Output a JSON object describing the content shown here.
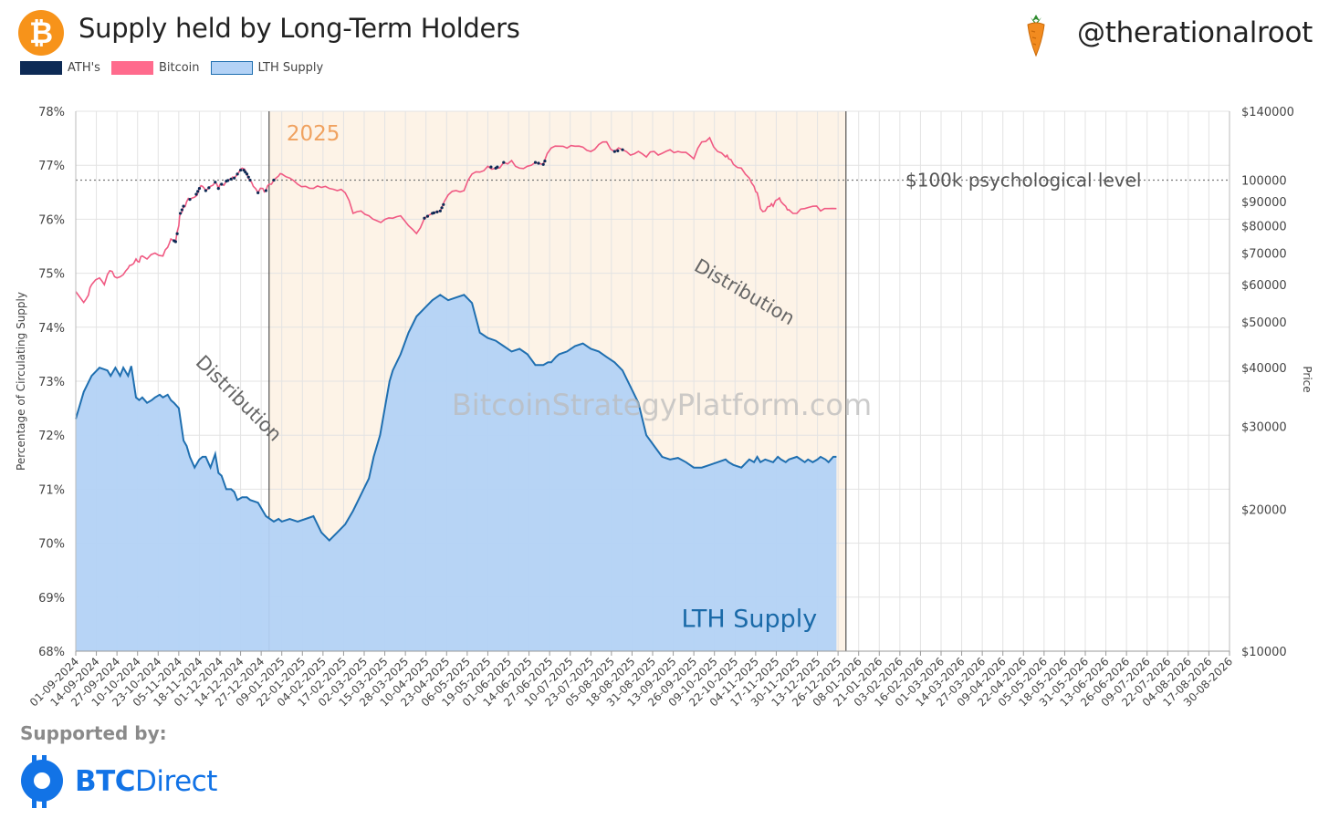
{
  "header": {
    "title": "Supply held by Long-Term Holders",
    "btc_symbol": "₿",
    "handle": "@therationalroot"
  },
  "legend": [
    {
      "label": "ATH's",
      "color": "#0d2a55"
    },
    {
      "label": "Bitcoin",
      "color": "#ff6b8d"
    },
    {
      "label": "LTH Supply",
      "color": "#b3d2f6"
    }
  ],
  "footer": {
    "supported_by": "Supported by:",
    "brand_bold": "BTC",
    "brand_light": "Direct"
  },
  "colors": {
    "lth_line": "#1f6fb0",
    "lth_fill": "#b3d2f6",
    "bitcoin_line": "#f05a83",
    "ath_marker": "#0d2a55",
    "highlight_band": "#fdf3e7",
    "year_label": "#f0a260",
    "annotation": "#666666"
  },
  "chart_data": {
    "type": "area",
    "title": "Supply held by Long-Term Holders",
    "ylabel": "Percentage of Circulating Supply",
    "y2label": "Price",
    "ylim": [
      68,
      78
    ],
    "y_ticks": [
      "68%",
      "69%",
      "70%",
      "71%",
      "72%",
      "73%",
      "74%",
      "75%",
      "76%",
      "77%",
      "78%"
    ],
    "y2_scale": "log",
    "y2lim": [
      10000,
      140000
    ],
    "y2_ticks": [
      {
        "value": 10000,
        "label": "$10000"
      },
      {
        "value": 20000,
        "label": "$20000"
      },
      {
        "value": 30000,
        "label": "$30000"
      },
      {
        "value": 40000,
        "label": "$40000"
      },
      {
        "value": 50000,
        "label": "$50000"
      },
      {
        "value": 60000,
        "label": "$60000"
      },
      {
        "value": 70000,
        "label": "$70000"
      },
      {
        "value": 80000,
        "label": "$80000"
      },
      {
        "value": 90000,
        "label": "$90000"
      },
      {
        "value": 100000,
        "label": "100000"
      },
      {
        "value": 140000,
        "label": "$140000"
      }
    ],
    "x_start": "01-09-2024",
    "x_total_days": 728,
    "x_tick_labels": [
      "01-09-2024",
      "14-09-2024",
      "27-09-2024",
      "10-10-2024",
      "23-10-2024",
      "05-11-2024",
      "18-11-2024",
      "01-12-2024",
      "14-12-2024",
      "27-12-2024",
      "09-01-2025",
      "22-01-2025",
      "04-02-2025",
      "17-02-2025",
      "02-03-2025",
      "15-03-2025",
      "28-03-2025",
      "10-04-2025",
      "23-04-2025",
      "06-05-2025",
      "19-05-2025",
      "01-06-2025",
      "14-06-2025",
      "27-06-2025",
      "10-07-2025",
      "23-07-2025",
      "05-08-2025",
      "18-08-2025",
      "31-08-2025",
      "13-09-2025",
      "26-09-2025",
      "09-10-2025",
      "22-10-2025",
      "04-11-2025",
      "17-11-2025",
      "30-11-2025",
      "13-12-2025",
      "26-12-2025",
      "08-01-2026",
      "21-01-2026",
      "03-02-2026",
      "16-02-2026",
      "01-03-2026",
      "14-03-2026",
      "27-03-2026",
      "09-04-2026",
      "22-04-2026",
      "05-05-2026",
      "18-05-2026",
      "31-05-2026",
      "13-06-2026",
      "26-06-2026",
      "09-07-2026",
      "22-07-2026",
      "04-08-2026",
      "17-08-2026",
      "30-08-2026"
    ],
    "highlight_range_days": [
      122,
      486
    ],
    "highlight_label": "2025",
    "reference_line": {
      "price": 100000,
      "label": "$100k psychological level"
    },
    "annotations": [
      {
        "text": "Distribution",
        "day": 100,
        "value": 72.6
      },
      {
        "text": "Distribution",
        "day": 420,
        "value": 74.55
      },
      {
        "text": "LTH Supply",
        "day": 425,
        "value": 68.45
      }
    ],
    "watermark": "BitcoinStrategyPlatform.com",
    "series": [
      {
        "name": "LTH Supply",
        "type": "area",
        "axis": "left",
        "x_days": [
          0,
          5,
          10,
          15,
          20,
          22,
          25,
          28,
          30,
          33,
          35,
          38,
          40,
          42,
          45,
          48,
          50,
          53,
          55,
          58,
          60,
          62,
          65,
          68,
          70,
          72,
          75,
          78,
          80,
          82,
          85,
          88,
          90,
          92,
          95,
          98,
          100,
          102,
          105,
          108,
          110,
          115,
          118,
          120,
          125,
          128,
          130,
          135,
          140,
          145,
          150,
          155,
          160,
          165,
          170,
          175,
          180,
          185,
          188,
          192,
          195,
          198,
          200,
          205,
          210,
          215,
          220,
          225,
          230,
          235,
          240,
          245,
          250,
          255,
          260,
          265,
          270,
          275,
          280,
          285,
          290,
          295,
          298,
          300,
          303,
          305,
          310,
          315,
          320,
          325,
          330,
          335,
          340,
          345,
          350,
          355,
          360,
          365,
          370,
          375,
          380,
          385,
          390,
          395,
          400,
          405,
          410,
          412,
          415,
          420,
          425,
          428,
          430,
          432,
          435,
          440,
          443,
          445,
          448,
          450,
          455,
          460,
          462,
          465,
          468,
          470,
          473,
          475,
          478,
          480
        ],
        "values": [
          72.3,
          72.8,
          73.1,
          73.25,
          73.2,
          73.1,
          73.25,
          73.1,
          73.25,
          73.1,
          73.28,
          72.7,
          72.65,
          72.7,
          72.6,
          72.65,
          72.7,
          72.75,
          72.7,
          72.75,
          72.65,
          72.6,
          72.5,
          71.9,
          71.8,
          71.6,
          71.4,
          71.55,
          71.6,
          71.6,
          71.4,
          71.65,
          71.3,
          71.25,
          71.0,
          71.0,
          70.95,
          70.8,
          70.85,
          70.85,
          70.8,
          70.75,
          70.6,
          70.5,
          70.4,
          70.45,
          70.4,
          70.45,
          70.4,
          70.45,
          70.5,
          70.2,
          70.05,
          70.2,
          70.35,
          70.6,
          70.9,
          71.2,
          71.6,
          72.0,
          72.5,
          73.0,
          73.2,
          73.5,
          73.9,
          74.2,
          74.35,
          74.5,
          74.6,
          74.5,
          74.55,
          74.6,
          74.45,
          73.9,
          73.8,
          73.75,
          73.65,
          73.55,
          73.6,
          73.5,
          73.3,
          73.3,
          73.35,
          73.35,
          73.45,
          73.5,
          73.55,
          73.65,
          73.7,
          73.6,
          73.55,
          73.45,
          73.35,
          73.2,
          72.9,
          72.6,
          72.0,
          71.8,
          71.6,
          71.55,
          71.58,
          71.5,
          71.4,
          71.4,
          71.45,
          71.5,
          71.55,
          71.5,
          71.45,
          71.4,
          71.55,
          71.5,
          71.6,
          71.5,
          71.55,
          71.5,
          71.6,
          71.55,
          71.5,
          71.55,
          71.6,
          71.5,
          71.55,
          71.5,
          71.55,
          71.6,
          71.55,
          71.5,
          71.6,
          71.6
        ]
      },
      {
        "name": "Bitcoin",
        "type": "line",
        "axis": "right",
        "x_days": [
          0,
          5,
          8,
          10,
          15,
          18,
          20,
          23,
          26,
          30,
          33,
          35,
          38,
          40,
          42,
          45,
          50,
          55,
          58,
          60,
          63,
          65,
          66,
          68,
          70,
          72,
          75,
          78,
          80,
          82,
          85,
          88,
          90,
          92,
          95,
          98,
          100,
          103,
          105,
          108,
          110,
          112,
          115,
          118,
          120,
          122,
          125,
          128,
          130,
          135,
          140,
          145,
          150,
          155,
          160,
          165,
          170,
          175,
          180,
          185,
          190,
          195,
          200,
          205,
          210,
          215,
          220,
          225,
          230,
          235,
          240,
          245,
          250,
          255,
          260,
          265,
          270,
          275,
          280,
          285,
          290,
          295,
          300,
          305,
          310,
          315,
          320,
          325,
          330,
          335,
          340,
          345,
          350,
          355,
          360,
          365,
          370,
          375,
          380,
          385,
          390,
          395,
          400,
          405,
          410,
          412,
          415,
          420,
          425,
          428,
          430,
          432,
          435,
          438,
          440,
          443,
          445,
          448,
          450,
          455,
          460,
          465,
          470,
          475,
          480
        ],
        "values": [
          58000,
          55000,
          57000,
          60000,
          62000,
          60000,
          63000,
          64000,
          62000,
          63000,
          65000,
          66000,
          68000,
          67000,
          69000,
          68000,
          70000,
          69000,
          72000,
          75000,
          74000,
          80000,
          85000,
          88000,
          90000,
          91000,
          92000,
          96000,
          97000,
          95000,
          97000,
          99000,
          96000,
          98000,
          99500,
          100500,
          101000,
          104000,
          106000,
          103000,
          100000,
          97000,
          94000,
          96000,
          95000,
          98000,
          100000,
          102000,
          103000,
          101000,
          98000,
          97000,
          96000,
          96500,
          96000,
          95000,
          94000,
          85000,
          86000,
          84000,
          82000,
          82500,
          83000,
          84000,
          80000,
          77000,
          83000,
          85000,
          86000,
          93000,
          95000,
          95000,
          103000,
          104000,
          107000,
          106000,
          109000,
          110000,
          106000,
          107000,
          109000,
          108000,
          117000,
          118000,
          117000,
          118000,
          117500,
          115000,
          119000,
          120500,
          115000,
          116000,
          113000,
          115000,
          112000,
          115000,
          114000,
          116000,
          115000,
          114500,
          111000,
          120500,
          123000,
          115000,
          112000,
          111000,
          108000,
          106000,
          101000,
          97000,
          94000,
          87000,
          86000,
          88000,
          88000,
          91000,
          90000,
          88000,
          86500,
          85000,
          87000,
          88000,
          86000,
          87000,
          87000
        ]
      }
    ],
    "ath_points_days": [
      62,
      63,
      64,
      66,
      67,
      68,
      72,
      76,
      77,
      78,
      82,
      84,
      88,
      90,
      92,
      95,
      96,
      98,
      100,
      102,
      104,
      106,
      107,
      108,
      109,
      110,
      115,
      120,
      125,
      220,
      222,
      225,
      226,
      228,
      230,
      231,
      232,
      262,
      265,
      266,
      270,
      290,
      292,
      295,
      296,
      340,
      342,
      345
    ]
  }
}
